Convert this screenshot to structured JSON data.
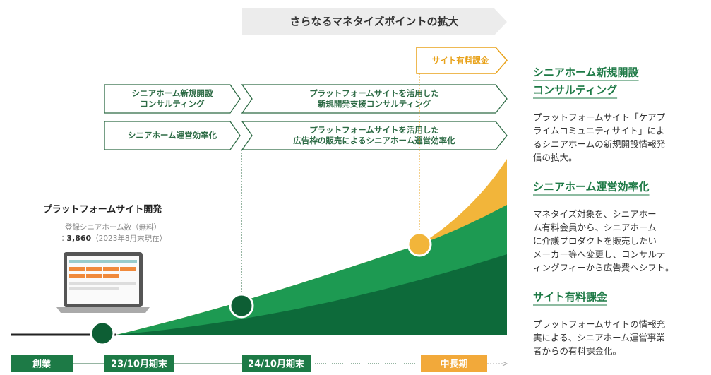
{
  "banner": "さらなるマネタイズポイントの拡大",
  "paid_arrow": "サイト有料課金",
  "arrows": [
    {
      "lines": [
        "シニアホーム新規開設",
        "コンサルティング"
      ]
    },
    {
      "lines": [
        "プラットフォームサイトを活用した",
        "新規開発支援コンサルティング"
      ]
    },
    {
      "lines": [
        "シニアホーム運営効率化"
      ]
    },
    {
      "lines": [
        "プラットフォームサイトを活用した",
        "広告枠の販売によるシニアホーム運営効率化"
      ]
    }
  ],
  "platform": {
    "title": "プラットフォームサイト開発",
    "note": "登録シニアホーム数（無料）",
    "count_prefix": "：",
    "count": "3,860",
    "count_suffix": "（2023年8月末現在）"
  },
  "timeline": [
    "創業",
    "23/10月期末",
    "24/10月期末",
    "中長期"
  ],
  "sidebar": [
    {
      "title_lines": [
        "シニアホーム新規開設",
        "コンサルティング"
      ],
      "body_lines": [
        "プラットフォームサイト「ケアプ",
        "ライムコミュニティサイト」によ",
        "るシニアホームの新規開設情報発",
        "信の拡大。"
      ]
    },
    {
      "title_lines": [
        "シニアホーム運営効率化"
      ],
      "body_lines": [
        "マネタイズ対象を、シニアホー",
        "ム有料会員から、シニアホーム",
        "に介護プロダクトを販売したい",
        "メーカー等へ変更し、コンサルテ",
        "ィングフィーから広告費へシフト。"
      ]
    },
    {
      "title_lines": [
        "サイト有料課金"
      ],
      "body_lines": [
        "プラットフォームサイトの情報充",
        "実による、シニアホーム運営事業",
        "者からの有料課金化。"
      ]
    }
  ]
}
